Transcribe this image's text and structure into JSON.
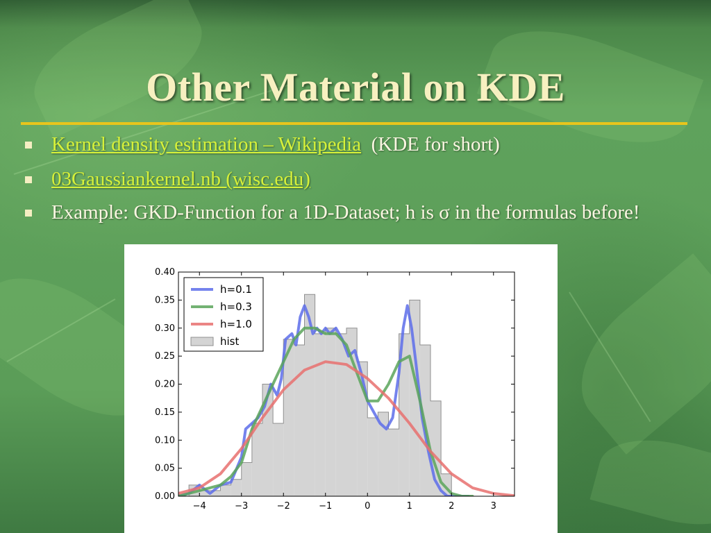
{
  "slide": {
    "title": "Other Material on KDE",
    "bullets": [
      {
        "link": "Kernel density estimation – Wikipedia",
        "suffix": "  (KDE for short)"
      },
      {
        "link": "03Gaussiankernel.nb (wisc.edu)",
        "suffix": ""
      },
      {
        "text": "Example: GKD-Function for a 1D-Dataset; h is σ in the formulas before!"
      }
    ],
    "colors": {
      "background": "#5fa25c",
      "title": "#f7f0c0",
      "rule": "#e8c51c",
      "link": "#d6f13a",
      "text": "#fbf6e2"
    }
  },
  "chart_data": {
    "type": "line",
    "xlim": [
      -4.5,
      3.5
    ],
    "ylim": [
      0,
      0.4
    ],
    "x_ticks": [
      -4,
      -3,
      -2,
      -1,
      0,
      1,
      2,
      3
    ],
    "x_tick_labels": [
      "−4",
      "−3",
      "−2",
      "−1",
      "0",
      "1",
      "2",
      "3"
    ],
    "y_ticks": [
      0.0,
      0.05,
      0.1,
      0.15,
      0.2,
      0.25,
      0.3,
      0.35,
      0.4
    ],
    "y_tick_labels": [
      "0.00",
      "0.05",
      "0.10",
      "0.15",
      "0.20",
      "0.25",
      "0.30",
      "0.35",
      "0.40"
    ],
    "grid": false,
    "legend_position": "top-left",
    "hist": {
      "name": "hist",
      "color": "#d4d4d4",
      "edges": [
        -4.5,
        -4.25,
        -4.0,
        -3.75,
        -3.5,
        -3.25,
        -3.0,
        -2.75,
        -2.5,
        -2.25,
        -2.0,
        -1.75,
        -1.5,
        -1.25,
        -1.0,
        -0.75,
        -0.5,
        -0.25,
        0.0,
        0.25,
        0.5,
        0.75,
        1.0,
        1.25,
        1.5,
        1.75,
        2.0,
        2.25
      ],
      "heights": [
        0.0,
        0.02,
        0.01,
        0.01,
        0.02,
        0.03,
        0.06,
        0.13,
        0.2,
        0.13,
        0.28,
        0.27,
        0.36,
        0.29,
        0.3,
        0.29,
        0.3,
        0.24,
        0.14,
        0.15,
        0.12,
        0.29,
        0.35,
        0.27,
        0.17,
        0.04,
        0.0
      ]
    },
    "series": [
      {
        "name": "h=0.1",
        "color": "#5d6dea",
        "x": [
          -4.5,
          -4.25,
          -4.0,
          -3.75,
          -3.5,
          -3.25,
          -3.0,
          -2.9,
          -2.75,
          -2.6,
          -2.45,
          -2.3,
          -2.15,
          -2.05,
          -1.95,
          -1.8,
          -1.7,
          -1.6,
          -1.5,
          -1.4,
          -1.3,
          -1.2,
          -1.1,
          -1.0,
          -0.9,
          -0.75,
          -0.6,
          -0.45,
          -0.3,
          -0.15,
          0.0,
          0.15,
          0.3,
          0.45,
          0.6,
          0.75,
          0.85,
          0.95,
          1.05,
          1.15,
          1.3,
          1.45,
          1.6,
          1.75,
          1.9,
          2.1,
          2.4
        ],
        "y": [
          0.0,
          0.005,
          0.02,
          0.005,
          0.02,
          0.025,
          0.07,
          0.12,
          0.13,
          0.14,
          0.16,
          0.2,
          0.18,
          0.21,
          0.28,
          0.29,
          0.27,
          0.32,
          0.34,
          0.32,
          0.29,
          0.3,
          0.29,
          0.3,
          0.29,
          0.3,
          0.28,
          0.25,
          0.26,
          0.22,
          0.17,
          0.15,
          0.13,
          0.12,
          0.14,
          0.22,
          0.3,
          0.34,
          0.3,
          0.24,
          0.14,
          0.08,
          0.03,
          0.01,
          0.0,
          0.0,
          0.0
        ]
      },
      {
        "name": "h=0.3",
        "color": "#5aa55a",
        "x": [
          -4.5,
          -4.25,
          -4.0,
          -3.75,
          -3.5,
          -3.25,
          -3.0,
          -2.75,
          -2.5,
          -2.25,
          -2.0,
          -1.75,
          -1.5,
          -1.25,
          -1.0,
          -0.75,
          -0.5,
          -0.25,
          0.0,
          0.25,
          0.5,
          0.75,
          1.0,
          1.25,
          1.5,
          1.75,
          2.0,
          2.25,
          2.5
        ],
        "y": [
          0.0,
          0.005,
          0.01,
          0.015,
          0.02,
          0.035,
          0.06,
          0.12,
          0.16,
          0.2,
          0.24,
          0.28,
          0.3,
          0.3,
          0.29,
          0.29,
          0.27,
          0.22,
          0.17,
          0.17,
          0.2,
          0.24,
          0.25,
          0.17,
          0.08,
          0.025,
          0.005,
          0.0,
          0.0
        ]
      },
      {
        "name": "h=1.0",
        "color": "#e8706e",
        "x": [
          -4.5,
          -4.0,
          -3.5,
          -3.0,
          -2.5,
          -2.0,
          -1.5,
          -1.0,
          -0.5,
          0.0,
          0.5,
          1.0,
          1.5,
          2.0,
          2.5,
          3.0,
          3.5
        ],
        "y": [
          0.005,
          0.015,
          0.04,
          0.085,
          0.14,
          0.19,
          0.225,
          0.24,
          0.235,
          0.21,
          0.175,
          0.13,
          0.08,
          0.04,
          0.015,
          0.005,
          0.001
        ]
      }
    ]
  }
}
